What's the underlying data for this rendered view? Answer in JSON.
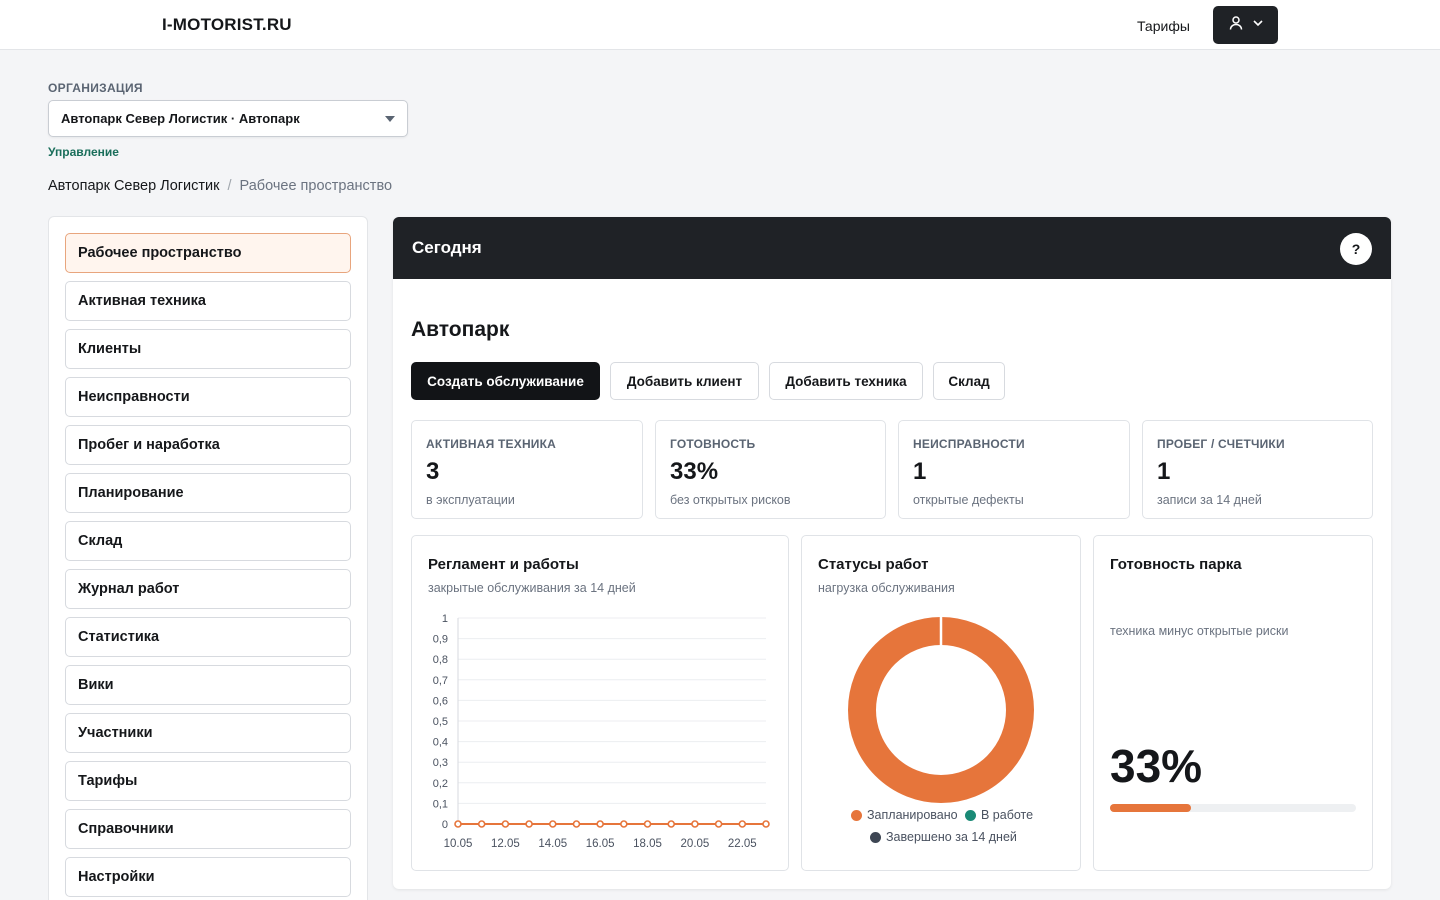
{
  "header": {
    "brand": "I-MOTORIST.RU",
    "tariffs_link": "Тарифы",
    "user_menu_icon": "user-icon"
  },
  "org": {
    "label": "ОРГАНИЗАЦИЯ",
    "selected": "Автопарк Север Логистик · Автопарк",
    "manage_link": "Управление"
  },
  "breadcrumb": {
    "root": "Автопарк Север Логистик",
    "separator": "/",
    "current": "Рабочее пространство"
  },
  "sidebar": {
    "active_index": 0,
    "items": [
      {
        "label": "Рабочее пространство"
      },
      {
        "label": "Активная техника"
      },
      {
        "label": "Клиенты"
      },
      {
        "label": "Неисправности"
      },
      {
        "label": "Пробег и наработка"
      },
      {
        "label": "Планирование"
      },
      {
        "label": "Склад"
      },
      {
        "label": "Журнал работ"
      },
      {
        "label": "Статистика"
      },
      {
        "label": "Вики"
      },
      {
        "label": "Участники"
      },
      {
        "label": "Тарифы"
      },
      {
        "label": "Справочники"
      },
      {
        "label": "Настройки"
      }
    ]
  },
  "main": {
    "header_title": "Сегодня",
    "help_label": "?",
    "section_title": "Автопарк",
    "actions": [
      {
        "label": "Создать обслуживание",
        "primary": true
      },
      {
        "label": "Добавить клиент",
        "primary": false
      },
      {
        "label": "Добавить техника",
        "primary": false
      },
      {
        "label": "Склад",
        "primary": false
      }
    ],
    "kpis": [
      {
        "label": "АКТИВНАЯ ТЕХНИКА",
        "value": "3",
        "sub": "в эксплуатации"
      },
      {
        "label": "ГОТОВНОСТЬ",
        "value": "33%",
        "sub": "без открытых рисков"
      },
      {
        "label": "НЕИСПРАВНОСТИ",
        "value": "1",
        "sub": "открытые дефекты"
      },
      {
        "label": "ПРОБЕГ / СЧЕТЧИКИ",
        "value": "1",
        "sub": "записи за 14 дней"
      }
    ],
    "works_card": {
      "title": "Регламент и работы",
      "subtitle": "закрытые обслуживания за 14 дней"
    },
    "status_card": {
      "title": "Статусы работ",
      "subtitle": "нагрузка обслуживания"
    },
    "readiness_card": {
      "title": "Готовность парка",
      "subtitle": "техника минус открытые риски",
      "value": "33%",
      "fraction": 0.33
    }
  },
  "colors": {
    "accent": "#e6753b",
    "dark": "#1f2226",
    "teal": "#1a8a76",
    "slate": "#3d4653"
  },
  "chart_data": [
    {
      "type": "line",
      "title": "",
      "x": [
        "10.05",
        "11.05",
        "12.05",
        "13.05",
        "14.05",
        "15.05",
        "16.05",
        "17.05",
        "18.05",
        "19.05",
        "20.05",
        "21.05",
        "22.05",
        "23.05"
      ],
      "x_tick_labels": [
        "10.05",
        "12.05",
        "14.05",
        "16.05",
        "18.05",
        "20.05",
        "22.05"
      ],
      "y_tick_labels": [
        "0",
        "0,1",
        "0,2",
        "0,3",
        "0,4",
        "0,5",
        "0,6",
        "0,7",
        "0,8",
        "0,9",
        "1"
      ],
      "series": [
        {
          "values": [
            0,
            0,
            0,
            0,
            0,
            0,
            0,
            0,
            0,
            0,
            0,
            0,
            0,
            0
          ],
          "color": "#e6753b"
        }
      ],
      "ylim": [
        0,
        1
      ],
      "grid": true
    },
    {
      "type": "pie",
      "title": "",
      "categories": [
        "Запланировано",
        "В работе",
        "Завершено за 14 дней"
      ],
      "values": [
        1,
        0,
        0
      ],
      "colors": [
        "#e6753b",
        "#1a8a76",
        "#3d4653"
      ],
      "legend": "bottom"
    }
  ]
}
